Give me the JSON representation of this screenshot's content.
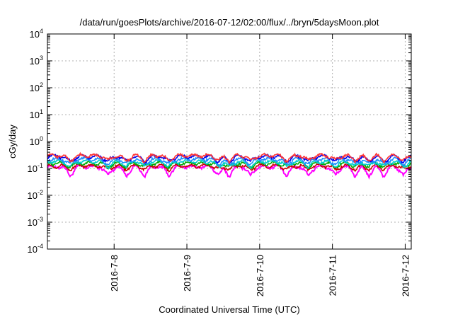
{
  "chart_data": {
    "type": "line",
    "title": "/data/run/goesPlots/archive/2016-07-12/02:00/flux/../bryn/5daysMoon.plot",
    "xlabel": "Coordinated Universal Time (UTC)",
    "ylabel": "cGy/day",
    "yscale": "log",
    "ylim": [
      0.0001,
      10000
    ],
    "xlim": [
      "2016-07-07 02:00",
      "2016-07-12 02:00"
    ],
    "y_ticks": [
      {
        "base": "10",
        "exp": "-4",
        "value": 0.0001
      },
      {
        "base": "10",
        "exp": "-3",
        "value": 0.001
      },
      {
        "base": "10",
        "exp": "-2",
        "value": 0.01
      },
      {
        "base": "10",
        "exp": "-1",
        "value": 0.1
      },
      {
        "base": "10",
        "exp": "0",
        "value": 1
      },
      {
        "base": "10",
        "exp": "1",
        "value": 10
      },
      {
        "base": "10",
        "exp": "2",
        "value": 100
      },
      {
        "base": "10",
        "exp": "3",
        "value": 1000
      },
      {
        "base": "10",
        "exp": "4",
        "value": 10000
      }
    ],
    "x_ticks": [
      "2016-7-8",
      "2016-7-9",
      "2016-7-10",
      "2016-7-11",
      "2016-7-12"
    ],
    "grid": true,
    "legend": "none",
    "series": [
      {
        "color": "#ff00ff",
        "base": 0.115,
        "values_note": ""
      },
      {
        "color": "#cc0000",
        "base": 0.125
      },
      {
        "color": "#00aa00",
        "base": 0.155
      },
      {
        "color": "#00cccc",
        "base": 0.18
      },
      {
        "color": "#1a8cff",
        "base": 0.22
      },
      {
        "color": "#0000ee",
        "base": 0.28
      },
      {
        "color": "#ff3333",
        "base": 0.3
      }
    ],
    "dip_dates": [
      "2016-07-07 09:30",
      "2016-07-07 22:00",
      "2016-07-08 04:00",
      "2016-07-08 10:00",
      "2016-07-08 18:00",
      "2016-07-09 10:30",
      "2016-07-09 14:00",
      "2016-07-09 21:00",
      "2016-07-10 09:00",
      "2016-07-10 16:00",
      "2016-07-11 01:00",
      "2016-07-11 07:30",
      "2016-07-11 12:00",
      "2016-07-11 17:00",
      "2016-07-11 23:30"
    ]
  }
}
